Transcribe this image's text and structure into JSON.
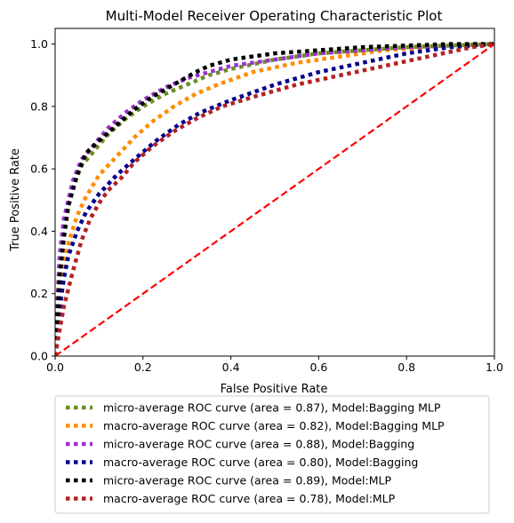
{
  "chart_data": {
    "type": "line",
    "title": "Multi-Model Receiver Operating Characteristic Plot",
    "xlabel": "False Positive Rate",
    "ylabel": "True Positive Rate",
    "xlim": [
      0,
      1
    ],
    "ylim": [
      0,
      1.05
    ],
    "xticks": [
      "0.0",
      "0.2",
      "0.4",
      "0.6",
      "0.8",
      "1.0"
    ],
    "yticks": [
      "0.0",
      "0.2",
      "0.4",
      "0.6",
      "0.8",
      "1.0"
    ],
    "grid": false,
    "legend_position": "below plot",
    "series": [
      {
        "name": "micro-average ROC curve (area = 0.87), Model:Bagging MLP",
        "color": "#6b8e23",
        "style": "dotted",
        "x": [
          0,
          0.01,
          0.02,
          0.04,
          0.06,
          0.09,
          0.12,
          0.16,
          0.2,
          0.25,
          0.3,
          0.35,
          0.4,
          0.5,
          0.6,
          0.7,
          0.8,
          0.9,
          1.0
        ],
        "y": [
          0,
          0.3,
          0.42,
          0.54,
          0.61,
          0.66,
          0.71,
          0.76,
          0.8,
          0.84,
          0.87,
          0.9,
          0.92,
          0.95,
          0.97,
          0.98,
          0.99,
          0.995,
          1.0
        ]
      },
      {
        "name": "macro-average ROC curve (area = 0.82), Model:Bagging MLP",
        "color": "#ff8c00",
        "style": "dotted",
        "x": [
          0,
          0.01,
          0.02,
          0.03,
          0.05,
          0.07,
          0.1,
          0.14,
          0.18,
          0.22,
          0.27,
          0.32,
          0.37,
          0.45,
          0.55,
          0.65,
          0.75,
          0.85,
          0.95,
          1.0
        ],
        "y": [
          0,
          0.2,
          0.3,
          0.36,
          0.45,
          0.51,
          0.58,
          0.64,
          0.7,
          0.75,
          0.8,
          0.84,
          0.87,
          0.91,
          0.94,
          0.96,
          0.98,
          0.99,
          1.0,
          1.0
        ]
      },
      {
        "name": "micro-average ROC curve (area = 0.88), Model:Bagging",
        "color": "#9932cc",
        "style": "dotted",
        "x": [
          0,
          0.01,
          0.02,
          0.04,
          0.06,
          0.09,
          0.12,
          0.16,
          0.2,
          0.25,
          0.3,
          0.35,
          0.4,
          0.5,
          0.6,
          0.7,
          0.8,
          0.9,
          1.0
        ],
        "y": [
          0,
          0.32,
          0.44,
          0.56,
          0.63,
          0.68,
          0.73,
          0.78,
          0.82,
          0.86,
          0.89,
          0.91,
          0.93,
          0.95,
          0.97,
          0.98,
          0.99,
          0.995,
          1.0
        ]
      },
      {
        "name": "macro-average ROC curve (area = 0.80), Model:Bagging",
        "color": "#00008b",
        "style": "dotted",
        "x": [
          0,
          0.01,
          0.02,
          0.03,
          0.05,
          0.07,
          0.1,
          0.14,
          0.18,
          0.23,
          0.28,
          0.33,
          0.4,
          0.5,
          0.6,
          0.7,
          0.8,
          0.9,
          1.0
        ],
        "y": [
          0,
          0.15,
          0.25,
          0.32,
          0.4,
          0.46,
          0.52,
          0.58,
          0.63,
          0.69,
          0.74,
          0.78,
          0.82,
          0.87,
          0.91,
          0.94,
          0.97,
          0.99,
          1.0
        ]
      },
      {
        "name": "micro-average ROC curve (area = 0.89), Model:MLP",
        "color": "#000000",
        "style": "dotted",
        "x": [
          0,
          0.005,
          0.01,
          0.02,
          0.03,
          0.05,
          0.07,
          0.1,
          0.14,
          0.18,
          0.22,
          0.27,
          0.32,
          0.35,
          0.4,
          0.5,
          0.6,
          0.7,
          0.8,
          0.9,
          1.0
        ],
        "y": [
          0,
          0.12,
          0.25,
          0.38,
          0.48,
          0.58,
          0.65,
          0.69,
          0.74,
          0.79,
          0.83,
          0.87,
          0.91,
          0.93,
          0.95,
          0.97,
          0.98,
          0.99,
          0.995,
          1.0,
          1.0
        ]
      },
      {
        "name": "macro-average ROC curve (area = 0.78), Model:MLP",
        "color": "#b22222",
        "style": "dotted",
        "x": [
          0,
          0.01,
          0.02,
          0.04,
          0.06,
          0.08,
          0.1,
          0.12,
          0.15,
          0.18,
          0.22,
          0.27,
          0.32,
          0.38,
          0.45,
          0.55,
          0.65,
          0.75,
          0.85,
          0.95,
          1.0
        ],
        "y": [
          0,
          0.08,
          0.16,
          0.27,
          0.37,
          0.44,
          0.49,
          0.53,
          0.57,
          0.62,
          0.67,
          0.72,
          0.76,
          0.8,
          0.83,
          0.87,
          0.9,
          0.93,
          0.96,
          0.99,
          1.0
        ]
      }
    ],
    "reference_line": {
      "x": [
        0,
        1
      ],
      "y": [
        0,
        1
      ],
      "color": "#ff0000",
      "style": "dashed"
    }
  }
}
